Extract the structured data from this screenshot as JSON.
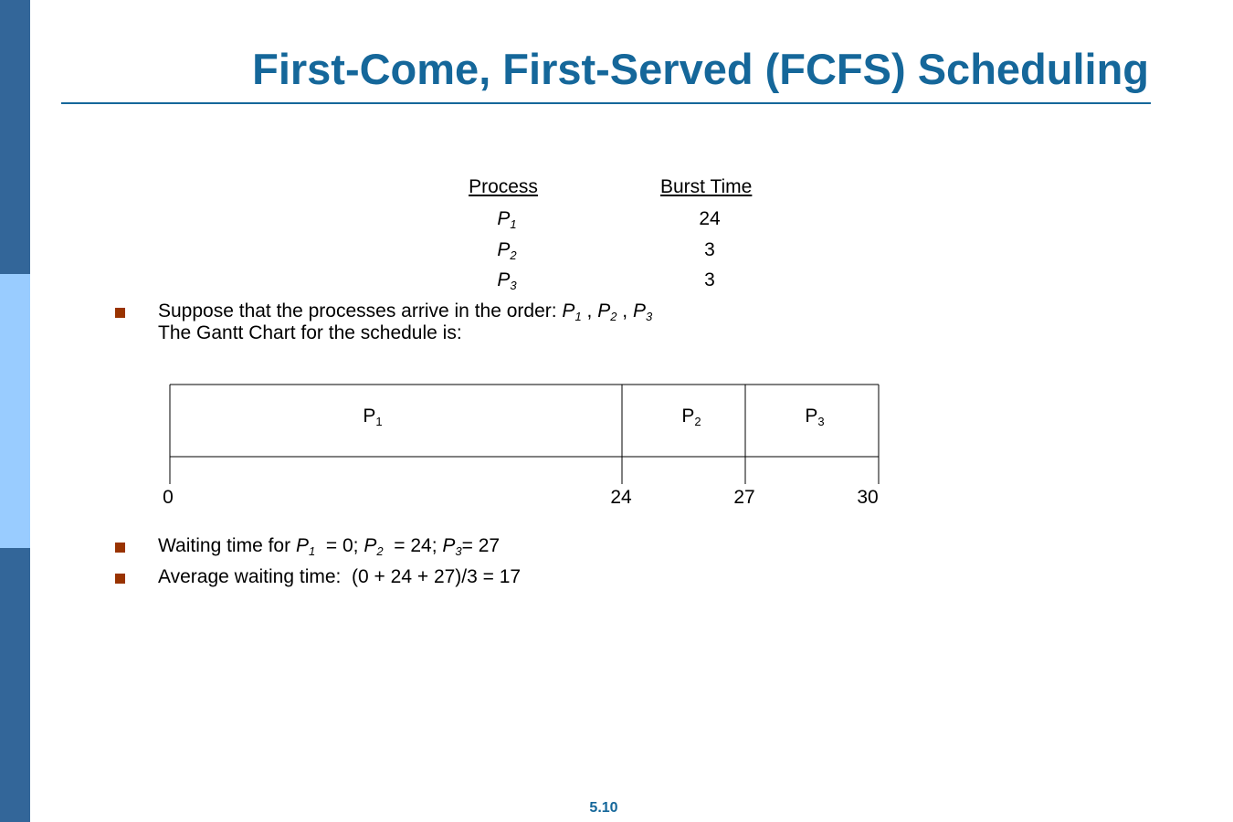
{
  "header": {
    "title": "First-Come, First-Served (FCFS) Scheduling"
  },
  "table": {
    "headers": [
      "Process",
      "Burst Time"
    ],
    "rows": [
      [
        {
          "name": "P",
          "sub": "1"
        },
        24
      ],
      [
        {
          "name": "P",
          "sub": "2"
        },
        3
      ],
      [
        {
          "name": "P",
          "sub": "3"
        },
        3
      ]
    ]
  },
  "bullets": [
    {
      "lines": [
        [
          "Suppose that the processes arrive in the order: ",
          {
            "name": "P",
            "sub": "1"
          },
          " , ",
          {
            "name": "P",
            "sub": "2"
          },
          " , ",
          {
            "name": "P",
            "sub": "3"
          }
        ],
        [
          "The Gantt Chart for the schedule is:"
        ]
      ]
    },
    {
      "lines": [
        [
          "Waiting time for ",
          {
            "name": "P",
            "sub": "1"
          },
          "  = 0; ",
          {
            "name": "P",
            "sub": "2"
          },
          "  = 24; ",
          {
            "name": "P",
            "sub": "3"
          },
          "= 27"
        ]
      ]
    },
    {
      "lines": [
        [
          "Average waiting time:  (0 + 24 + 27)/3 = 17"
        ]
      ]
    }
  ],
  "gantt": {
    "blocks": [
      {
        "name": "P",
        "sub": "1"
      },
      {
        "name": "P",
        "sub": "2"
      },
      {
        "name": "P",
        "sub": "3"
      }
    ],
    "times": [
      0,
      24,
      27,
      30
    ]
  },
  "footer": {
    "page": "5.10"
  }
}
